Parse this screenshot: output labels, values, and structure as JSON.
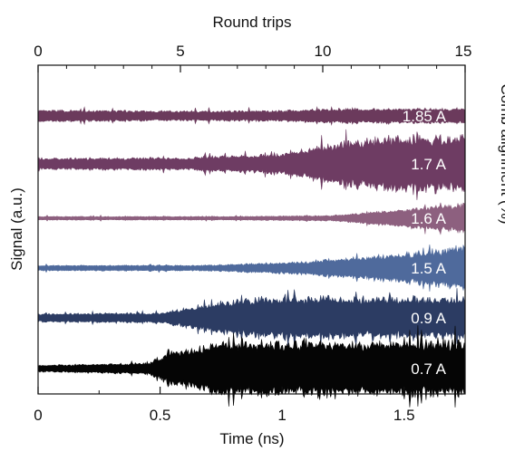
{
  "chart_data": {
    "type": "line",
    "xlabel": "Time (ns)",
    "ylabel": "Signal (a.u.)",
    "top_xlabel": "Round trips",
    "right_ylabel": "Comb alignment (%)",
    "xlim": [
      0,
      1.75
    ],
    "top_xlim": [
      0,
      15
    ],
    "x_ticks": [
      "0",
      "0.5",
      "1",
      "1.5"
    ],
    "top_x_ticks": [
      "0",
      "5",
      "10",
      "15"
    ],
    "grid": false,
    "series": [
      {
        "name": "1.85 A",
        "color": "#6b3a5c",
        "envelope_t": [
          0,
          0.5,
          1.0,
          1.25,
          1.5,
          1.75
        ],
        "envelope_a": [
          0.35,
          0.3,
          0.33,
          0.45,
          0.45,
          0.45
        ]
      },
      {
        "name": "1.7 A",
        "color": "#6e3c63",
        "envelope_t": [
          0,
          0.6,
          1.0,
          1.2,
          1.45,
          1.75
        ],
        "envelope_a": [
          0.2,
          0.22,
          0.35,
          0.7,
          0.95,
          1.0
        ]
      },
      {
        "name": "1.6 A",
        "color": "#8d607f",
        "envelope_t": [
          0,
          0.8,
          1.2,
          1.45,
          1.75
        ],
        "envelope_a": [
          0.12,
          0.12,
          0.18,
          0.5,
          1.0
        ]
      },
      {
        "name": "1.5 A",
        "color": "#4f6a9c",
        "envelope_t": [
          0,
          0.7,
          1.1,
          1.45,
          1.75
        ],
        "envelope_a": [
          0.12,
          0.13,
          0.3,
          0.6,
          0.95
        ]
      },
      {
        "name": "0.9 A",
        "color": "#2c3c63",
        "envelope_t": [
          0,
          0.5,
          0.7,
          0.85,
          1.0,
          1.75
        ],
        "envelope_a": [
          0.15,
          0.18,
          0.5,
          0.7,
          0.75,
          0.75
        ]
      },
      {
        "name": "0.7 A",
        "color": "#050505",
        "envelope_t": [
          0,
          0.45,
          0.55,
          0.7,
          0.85,
          1.75
        ],
        "envelope_a": [
          0.12,
          0.2,
          0.6,
          0.9,
          1.0,
          1.0
        ]
      }
    ]
  }
}
